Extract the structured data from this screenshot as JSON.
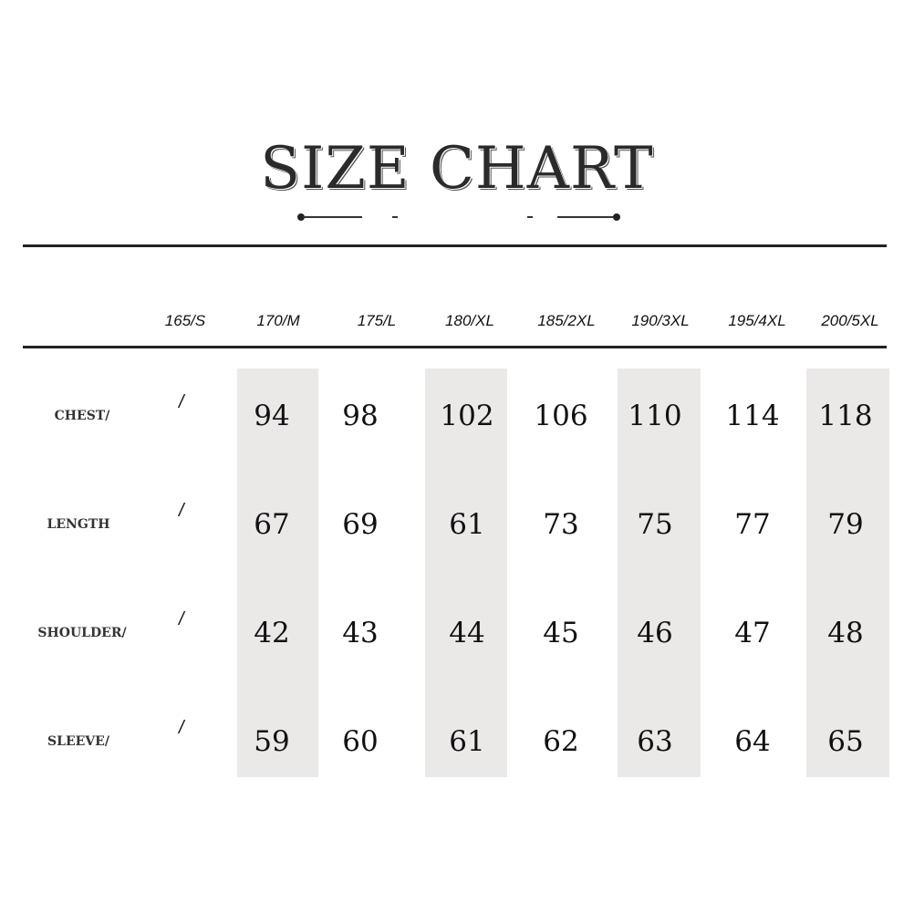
{
  "title": "SIZE CHART",
  "columns": [
    "165/S",
    "170/M",
    "175/L",
    "180/XL",
    "185/2XL",
    "190/3XL",
    "195/4XL",
    "200/5XL"
  ],
  "rows": [
    {
      "label": "CHEST/",
      "first": "/",
      "values": [
        "94",
        "98",
        "102",
        "106",
        "110",
        "114",
        "118"
      ]
    },
    {
      "label": "LENGTH",
      "first": "/",
      "values": [
        "67",
        "69",
        "61",
        "73",
        "75",
        "77",
        "79"
      ]
    },
    {
      "label": "SHOULDER/",
      "first": "/",
      "values": [
        "42",
        "43",
        "44",
        "45",
        "46",
        "47",
        "48"
      ]
    },
    {
      "label": "SLEEVE/",
      "first": "/",
      "values": [
        "59",
        "60",
        "61",
        "62",
        "63",
        "64",
        "65"
      ]
    }
  ],
  "colors": {
    "band": "#ebe8e8",
    "text": "#111111"
  }
}
